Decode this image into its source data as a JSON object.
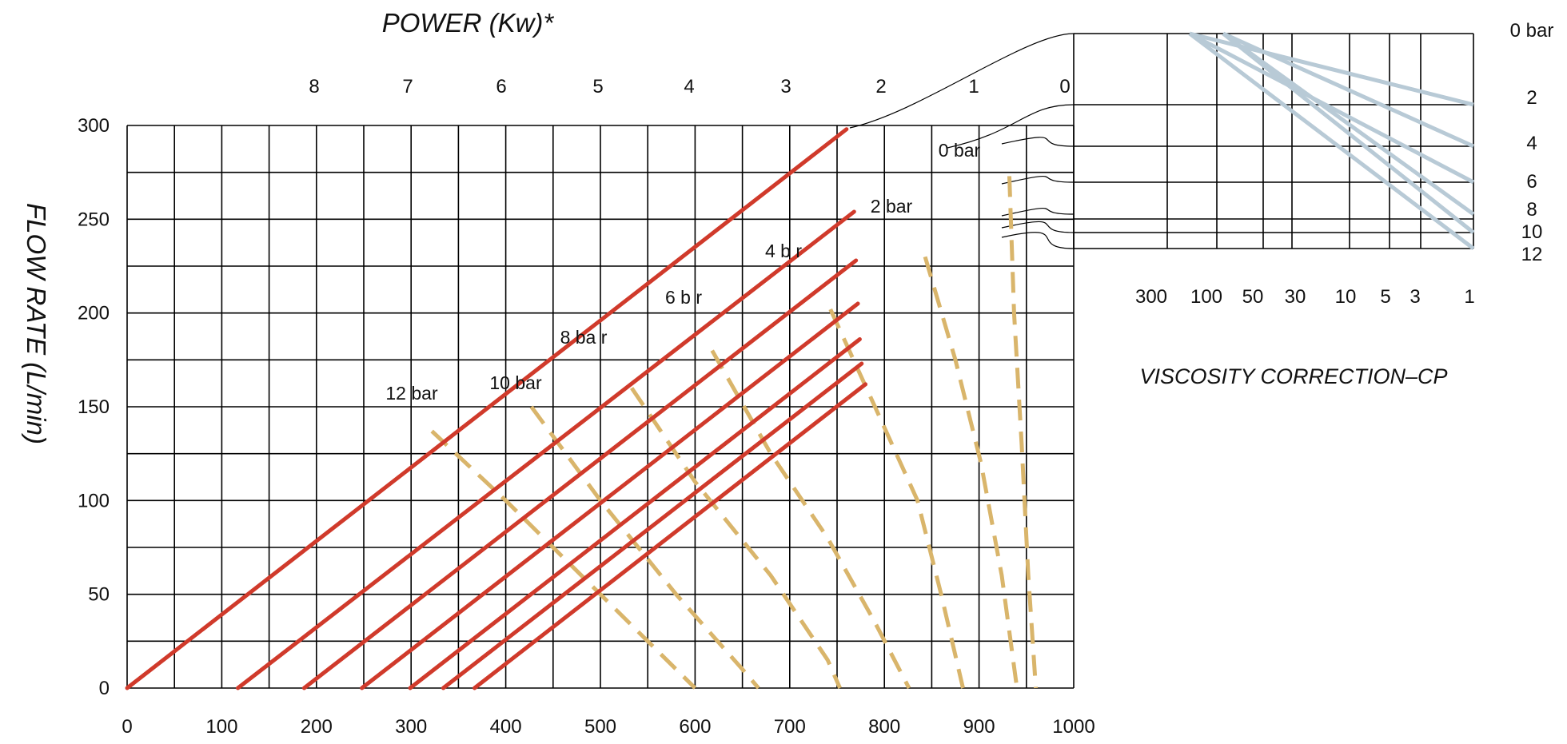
{
  "chart_data": {
    "type": "line",
    "title": "POWER (Kw)*",
    "xlabel": "",
    "ylabel": "FLOW RATE (L/min)",
    "xlim": [
      0,
      1000
    ],
    "ylim": [
      0,
      300
    ],
    "x_ticks": [
      "0",
      "100",
      "200",
      "300",
      "400",
      "500",
      "600",
      "700",
      "800",
      "900",
      "1000"
    ],
    "y_ticks": [
      "0",
      "50",
      "100",
      "150",
      "200",
      "250",
      "300"
    ],
    "power_ticks": [
      "8",
      "7",
      "6",
      "5",
      "4",
      "3",
      "2",
      "1",
      "0"
    ],
    "grid": true,
    "flow_lines": [
      {
        "pressure": "0 bar",
        "x": [
          0,
          760
        ],
        "y": [
          0,
          298
        ],
        "color": "#d03a2b"
      },
      {
        "pressure": "2 bar",
        "x": [
          117,
          768
        ],
        "y": [
          0,
          254
        ],
        "color": "#d03a2b"
      },
      {
        "pressure": "4 bar",
        "x": [
          187,
          770
        ],
        "y": [
          0,
          228
        ],
        "color": "#d03a2b"
      },
      {
        "pressure": "6 bar",
        "x": [
          248,
          772
        ],
        "y": [
          0,
          205
        ],
        "color": "#d03a2b"
      },
      {
        "pressure": "8 bar",
        "x": [
          299,
          774
        ],
        "y": [
          0,
          186
        ],
        "color": "#d03a2b"
      },
      {
        "pressure": "10 bar",
        "x": [
          334,
          776
        ],
        "y": [
          0,
          173
        ],
        "color": "#d03a2b"
      },
      {
        "pressure": "12 bar",
        "x": [
          367,
          780
        ],
        "y": [
          0,
          162
        ],
        "color": "#d03a2b"
      }
    ],
    "power_curves": [
      {
        "pressure": "0 bar",
        "x": [
          932,
          937,
          945,
          952,
          960
        ],
        "y": [
          273,
          200,
          130,
          60,
          0
        ],
        "color": "#d9b56b"
      },
      {
        "pressure": "2 bar",
        "x": [
          843,
          875,
          902,
          924,
          940
        ],
        "y": [
          230,
          175,
          120,
          60,
          0
        ],
        "color": "#d9b56b"
      },
      {
        "pressure": "4 bar",
        "x": [
          743,
          790,
          835,
          860,
          883
        ],
        "y": [
          202,
          150,
          100,
          50,
          0
        ],
        "color": "#d9b56b"
      },
      {
        "pressure": "6 bar",
        "x": [
          618,
          680,
          740,
          790,
          826
        ],
        "y": [
          180,
          125,
          80,
          35,
          0
        ],
        "color": "#d9b56b"
      },
      {
        "pressure": "8 bar",
        "x": [
          533,
          600,
          680,
          740,
          753
        ],
        "y": [
          160,
          110,
          60,
          15,
          0
        ],
        "color": "#d9b56b"
      },
      {
        "pressure": "10 bar",
        "x": [
          427,
          500,
          580,
          650,
          667
        ],
        "y": [
          150,
          100,
          50,
          10,
          0
        ],
        "color": "#d9b56b"
      },
      {
        "pressure": "12 bar",
        "x": [
          322,
          400,
          480,
          560,
          600
        ],
        "y": [
          137,
          100,
          60,
          20,
          0
        ],
        "color": "#d9b56b"
      }
    ],
    "pressure_labels": [
      "0 bar",
      "2 bar",
      "4 b r",
      "6 b r",
      "8 ba r",
      "10 bar",
      "12 bar"
    ],
    "viscosity_title": "VISCOSITY CORRECTION–CP",
    "viscosity_ticks": [
      "300",
      "100",
      "50",
      "30",
      "10",
      "5",
      "3",
      "1"
    ],
    "viscosity_pressure_labels": [
      "0 bar",
      "2",
      "4",
      "6",
      "8",
      "10",
      "12"
    ],
    "viscosity_lines_color": "#b8cad6"
  }
}
